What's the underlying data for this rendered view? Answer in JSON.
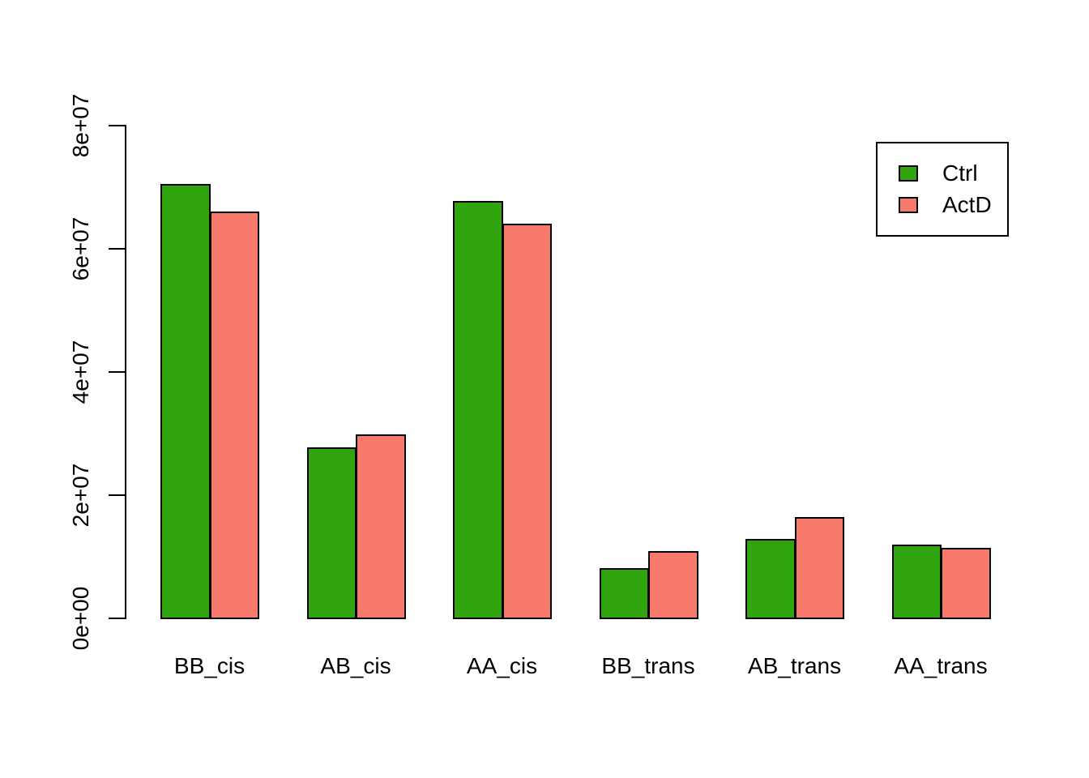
{
  "chart_data": {
    "type": "bar",
    "title": "",
    "xlabel": "",
    "ylabel": "",
    "categories": [
      "BB_cis",
      "AB_cis",
      "AA_cis",
      "BB_trans",
      "AB_trans",
      "AA_trans"
    ],
    "series": [
      {
        "name": "Ctrl",
        "color": "#2FA40F",
        "values": [
          70500000,
          27800000,
          67800000,
          8100000,
          12900000,
          12000000
        ]
      },
      {
        "name": "ActD",
        "color": "#F87A6D",
        "values": [
          66100000,
          29900000,
          64100000,
          10900000,
          16400000,
          11400000
        ]
      }
    ],
    "ylim": [
      0,
      80000000
    ],
    "yticks": {
      "values": [
        0,
        20000000,
        40000000,
        60000000,
        80000000
      ],
      "labels": [
        "0e+00",
        "2e+07",
        "4e+07",
        "6e+07",
        "8e+07"
      ]
    },
    "grid": false,
    "bar_border_color": "#000000",
    "background_color": "#FFFFFF",
    "legend": {
      "position": "top-right",
      "entries": [
        "Ctrl",
        "ActD"
      ]
    }
  }
}
